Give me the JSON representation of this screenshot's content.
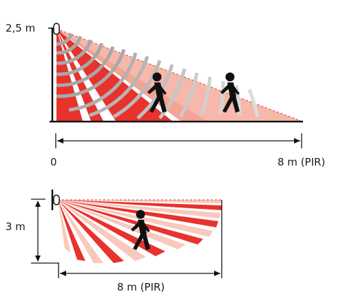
{
  "side_view": {
    "height_label": "2,5 m",
    "start_label": "0",
    "range_label": "8 m (PIR)"
  },
  "top_view": {
    "width_label": "3 m",
    "range_label": "8 m (PIR)"
  },
  "colors": {
    "near_zone": "#e8322d",
    "far_zone": "#f6b8ab",
    "line": "#111111",
    "wave_near": "#a8a8a8",
    "wave_far": "#d2d2d2"
  }
}
